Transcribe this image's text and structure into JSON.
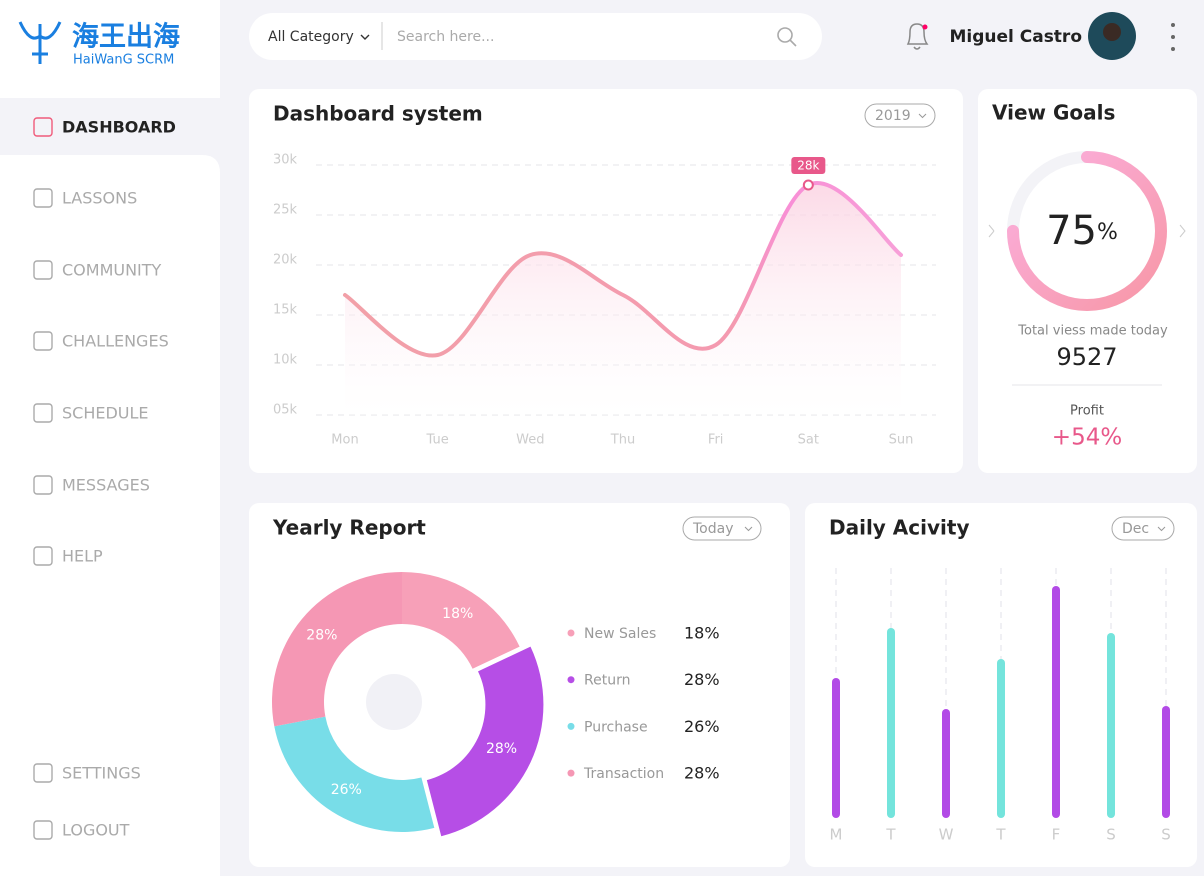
{
  "logo": {
    "title": "海王出海",
    "subtitle": "HaiWanG SCRM"
  },
  "nav": {
    "items": [
      "DASHBOARD",
      "LASSONS",
      "COMMUNITY",
      "CHALLENGES",
      "SCHEDULE",
      "MESSAGES",
      "HELP"
    ],
    "footer": [
      "SETTINGS",
      "LOGOUT"
    ]
  },
  "search": {
    "category": "All Category",
    "placeholder": "Search here..."
  },
  "user": {
    "name": "Miguel Castro"
  },
  "dashboard_chart": {
    "type": "line",
    "title": "Dashboard system",
    "filter": "2019",
    "categories": [
      "Mon",
      "Tue",
      "Wed",
      "Thu",
      "Fri",
      "Sat",
      "Sun"
    ],
    "values": [
      17,
      11,
      21,
      17,
      12,
      28,
      21
    ],
    "ylim": [
      5,
      30
    ],
    "yticks": [
      {
        "value": 5,
        "label": "05k"
      },
      {
        "value": 10,
        "label": "10k"
      },
      {
        "value": 15,
        "label": "15k"
      },
      {
        "value": 20,
        "label": "20k"
      },
      {
        "value": 25,
        "label": "25k"
      },
      {
        "value": 30,
        "label": "30k"
      }
    ],
    "grid": true,
    "color": "#f39aae",
    "annotation": {
      "x": "Sat",
      "y": 28,
      "label": "28k"
    }
  },
  "goals": {
    "title": "View Goals",
    "progress": {
      "value": 75,
      "unit": "%"
    },
    "views_label": "Total viess made today",
    "views": 9527,
    "profit_label": "Profit",
    "profit": "+54%"
  },
  "yearly_report": {
    "type": "pie",
    "title": "Yearly Report",
    "filter": "Today",
    "categories": [
      "New Sales",
      "Return",
      "Purchase",
      "Transaction"
    ],
    "values": [
      18,
      28,
      26,
      28
    ],
    "value_labels": [
      "18%",
      "28%",
      "26%",
      "28%"
    ],
    "colors": [
      "#f7a0b8",
      "#b64ee6",
      "#78dde8",
      "#f597b4"
    ]
  },
  "daily_activity": {
    "type": "bar",
    "title": "Daily Acivity",
    "filter": "Dec",
    "categories": [
      "M",
      "T",
      "W",
      "T",
      "F",
      "S",
      "S"
    ],
    "values": [
      140,
      190,
      109,
      159,
      232,
      185,
      112
    ],
    "ylim": [
      0,
      250
    ],
    "colors": [
      "#b24ae6",
      "#74e4dc",
      "#b24ae6",
      "#74e4dc",
      "#b24ae6",
      "#74e4dc",
      "#b24ae6"
    ]
  }
}
